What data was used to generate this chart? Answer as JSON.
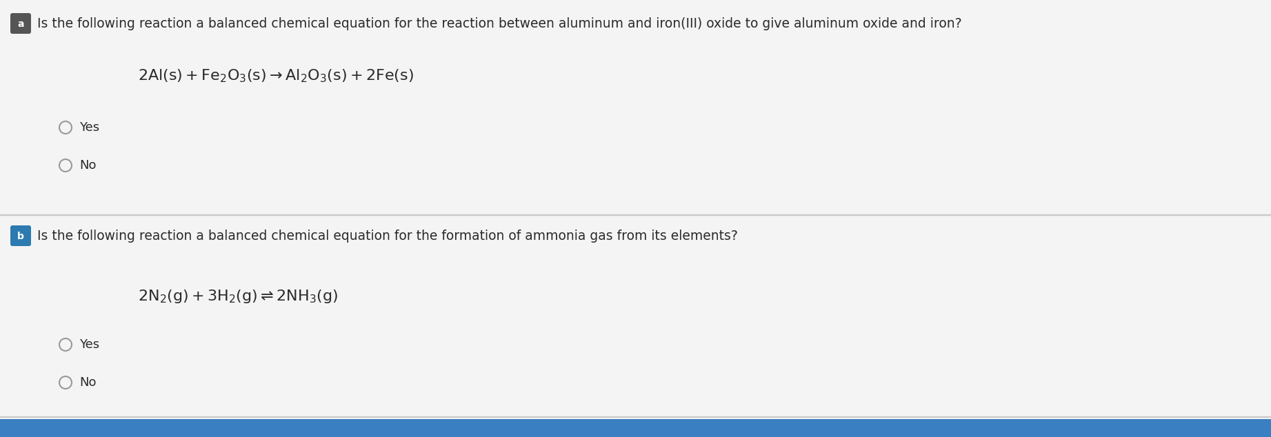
{
  "bg_top": "#f0f0f0",
  "bg_bottom": "#f0f0f0",
  "section1_bg": "#f2f2f2",
  "section2_bg": "#f5f5f5",
  "divider_color": "#c8c8c8",
  "badge_a_color": "#555555",
  "badge_b_color": "#2d7ab0",
  "question1": "Is the following reaction a balanced chemical equation for the reaction between aluminum and iron(III) oxide to give aluminum oxide and iron?",
  "question2": "Is the following reaction a balanced chemical equation for the formation of ammonia gas from its elements?",
  "options": [
    "Yes",
    "No"
  ],
  "question_fontsize": 13.5,
  "equation_fontsize": 16,
  "option_fontsize": 13,
  "text_color": "#2a2a2a",
  "radio_color": "#aaaaaa",
  "label_fontsize": 11
}
